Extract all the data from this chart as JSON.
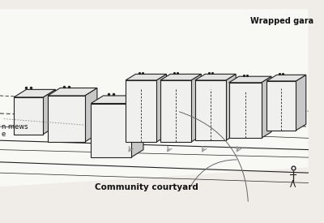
{
  "background_color": "#f0ede8",
  "labels": {
    "wrapped_garage": "Wrapped gara",
    "community_courtyard": "Community courtyard",
    "mews_label_1": "n mews",
    "mews_label_2": "e"
  },
  "line_color": "#222222",
  "roof_color": "#f0f0ee",
  "side_color_light": "#d8d8d8",
  "gray_face": "#c8c8c8",
  "arrow_color": "#999999"
}
